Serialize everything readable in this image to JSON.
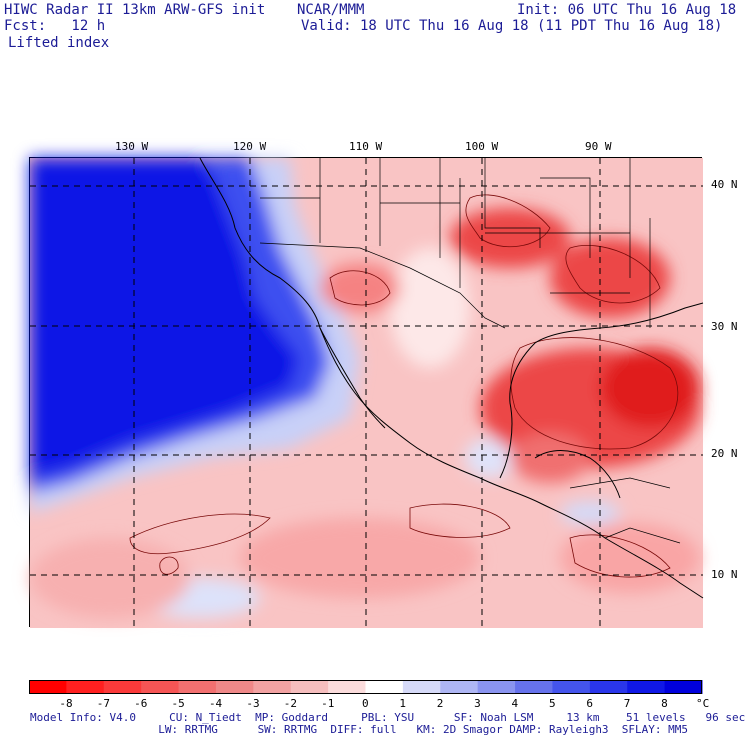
{
  "header": {
    "model_line": "HIWC Radar II 13km ARW-GFS init",
    "org": "NCAR/MMM",
    "init": "Init: 06 UTC Thu 16 Aug 18",
    "fcst": "Fcst:   12 h",
    "valid": "Valid: 18 UTC Thu 16 Aug 18 (11 PDT Thu 16 Aug 18)",
    "field": "Lifted index"
  },
  "map": {
    "lon_labels": [
      "130 W",
      "120 W",
      "110 W",
      "100 W",
      "90 W"
    ],
    "lat_labels": [
      "40 N",
      "30 N",
      "20 N",
      "10 N"
    ],
    "colors": {
      "deep_blue": "#0a14e6",
      "mid_blue": "#3c50f0",
      "light_blue": "#c8d0f8",
      "white": "#ffffff",
      "light_red": "#fac8c8",
      "mid_red": "#f58282",
      "strong_red": "#ec4646",
      "deep_red": "#e01e1e"
    }
  },
  "colorbar": {
    "ticks": [
      "-8",
      "-7",
      "-6",
      "-5",
      "-4",
      "-3",
      "-2",
      "-1",
      "0",
      "1",
      "2",
      "3",
      "4",
      "5",
      "6",
      "7",
      "8"
    ],
    "unit": "°C",
    "colors": [
      "#ff0000",
      "#ff2020",
      "#fb3a3a",
      "#f65555",
      "#f27070",
      "#ef8888",
      "#f2a2a2",
      "#f6bebe",
      "#fbdcdc",
      "#ffffff",
      "#d6daf8",
      "#aeb6f4",
      "#8a94f0",
      "#6672ec",
      "#4454ec",
      "#2a36ea",
      "#1018e6",
      "#0000dd"
    ]
  },
  "footer": {
    "line1": "Model Info: V4.0     CU: N_Tiedt  MP: Goddard     PBL: YSU      SF: Noah LSM     13 km    51 levels   96 sec",
    "line2": "          LW: RRTMG      SW: RRTMG  DIFF: full   KM: 2D Smagor DAMP: Rayleigh3  SFLAY: MM5"
  }
}
